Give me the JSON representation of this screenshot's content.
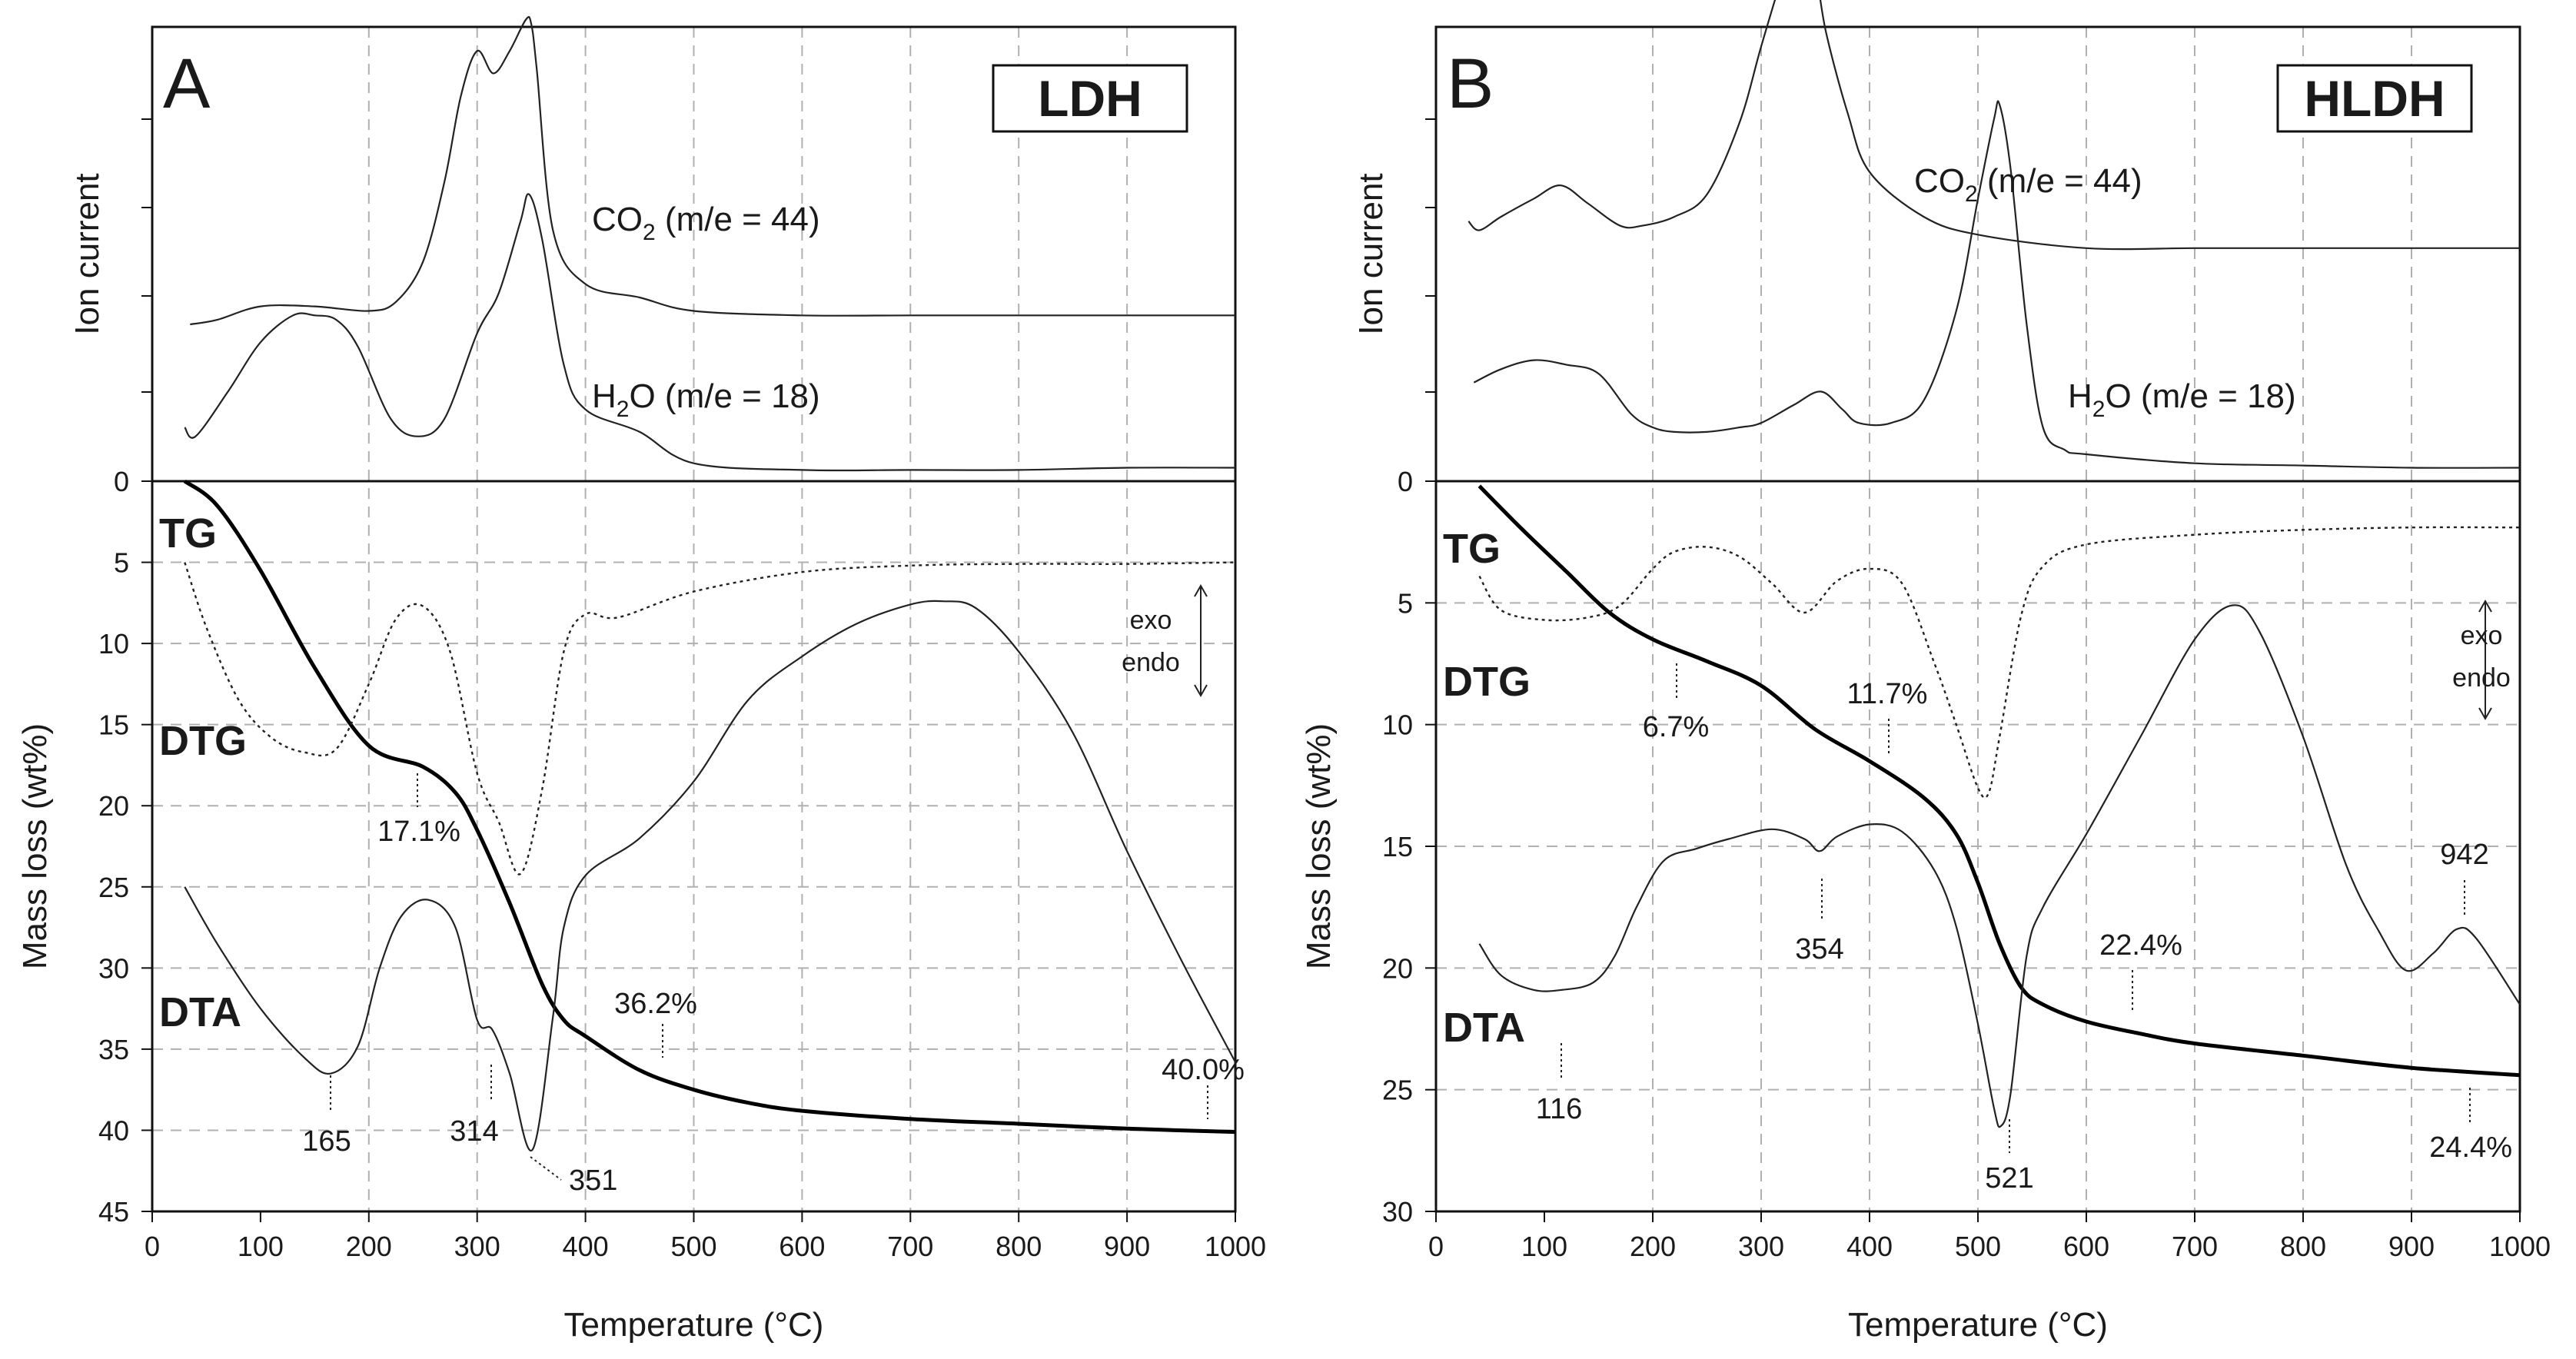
{
  "chart_data": [
    {
      "type": "line",
      "panel_letter": "A",
      "sample_tag": "LDH",
      "xlabel": "Temperature (°C)",
      "ylabel_top": "Ion current",
      "ylabel_bottom": "Mass loss (wt%)",
      "xlim": [
        0,
        1000
      ],
      "x_ticks": [
        "0",
        "100",
        "200",
        "300",
        "400",
        "500",
        "600",
        "700",
        "800",
        "900",
        "1000"
      ],
      "ylim": [
        0,
        45
      ],
      "y_ticks": [
        "0",
        "5",
        "10",
        "15",
        "20",
        "25",
        "30",
        "35",
        "40",
        "45"
      ],
      "ms_labels": [
        {
          "text": "CO",
          "sub": "2",
          "rest": " (m/e = 44)"
        },
        {
          "text": "H",
          "sub": "2",
          "rest": "O (m/e = 18)"
        }
      ],
      "curve_labels": [
        "TG",
        "DTG",
        "DTA"
      ],
      "exo_label": "exo",
      "endo_label": "endo",
      "annotations": [
        "165",
        "314",
        "351",
        "17.1%",
        "36.2%",
        "40.0%"
      ],
      "series": [
        {
          "name": "TG",
          "x": [
            30,
            60,
            100,
            150,
            200,
            250,
            280,
            300,
            330,
            360,
            380,
            400,
            450,
            500,
            550,
            600,
            700,
            800,
            900,
            1000
          ],
          "values": [
            0,
            1.5,
            5.5,
            11.5,
            16.3,
            17.6,
            19.2,
            21.5,
            26,
            31,
            33.2,
            34.2,
            36.3,
            37.5,
            38.3,
            38.8,
            39.3,
            39.6,
            39.9,
            40.1
          ]
        },
        {
          "name": "DTG",
          "x": [
            30,
            50,
            80,
            110,
            140,
            170,
            200,
            225,
            250,
            275,
            300,
            320,
            340,
            360,
            380,
            400,
            430,
            500,
            600,
            700,
            800,
            900,
            1000
          ],
          "values": [
            5,
            9,
            13.5,
            15.8,
            16.7,
            16.5,
            12.5,
            8.5,
            7.7,
            10.5,
            18,
            21,
            24.2,
            19,
            10.5,
            8.2,
            8.4,
            6.8,
            5.6,
            5.2,
            5.1,
            5.1,
            5.0
          ]
        },
        {
          "name": "DTA",
          "x": [
            30,
            60,
            100,
            140,
            165,
            190,
            210,
            230,
            255,
            280,
            300,
            314,
            330,
            351,
            370,
            380,
            400,
            450,
            500,
            550,
            600,
            650,
            700,
            730,
            760,
            800,
            850,
            900,
            950,
            1000
          ],
          "values": [
            25,
            28.5,
            32.5,
            35.5,
            36.5,
            34.8,
            30,
            26.8,
            25.8,
            27.5,
            33.2,
            33.8,
            36.5,
            41.2,
            33,
            27.5,
            24.3,
            22,
            18.5,
            13.5,
            10.8,
            8.8,
            7.6,
            7.4,
            7.8,
            10.5,
            15.5,
            22.8,
            29.5,
            35.8
          ]
        },
        {
          "name": "CO2 (m/e = 44)",
          "x": [
            35,
            60,
            100,
            150,
            200,
            225,
            250,
            270,
            285,
            300,
            315,
            330,
            345,
            350,
            355,
            370,
            400,
            450,
            500,
            600,
            700,
            800,
            900,
            1000
          ],
          "values": [
            0.35,
            0.36,
            0.39,
            0.39,
            0.38,
            0.4,
            0.49,
            0.67,
            0.86,
            0.96,
            0.91,
            0.96,
            1.03,
            1.02,
            0.92,
            0.56,
            0.44,
            0.41,
            0.38,
            0.37,
            0.37,
            0.37,
            0.37,
            0.37
          ]
        },
        {
          "name": "H2O (m/e = 18)",
          "x": [
            30,
            40,
            70,
            100,
            130,
            150,
            170,
            190,
            220,
            245,
            270,
            300,
            320,
            340,
            348,
            360,
            380,
            400,
            450,
            500,
            600,
            700,
            800,
            900,
            1000
          ],
          "values": [
            0.12,
            0.1,
            0.2,
            0.31,
            0.37,
            0.37,
            0.36,
            0.3,
            0.14,
            0.1,
            0.14,
            0.33,
            0.42,
            0.58,
            0.64,
            0.54,
            0.26,
            0.16,
            0.11,
            0.04,
            0.025,
            0.025,
            0.025,
            0.03,
            0.03
          ]
        }
      ],
      "colors": {
        "tg": "#000000",
        "other": "#222222",
        "grid": "#b0b0b0"
      }
    },
    {
      "type": "line",
      "panel_letter": "B",
      "sample_tag": "HLDH",
      "xlabel": "Temperature (°C)",
      "ylabel_top": "Ion current",
      "ylabel_bottom": "Mass loss (wt%)",
      "xlim": [
        0,
        1000
      ],
      "x_ticks": [
        "0",
        "100",
        "200",
        "300",
        "400",
        "500",
        "600",
        "700",
        "800",
        "900",
        "1000"
      ],
      "ylim": [
        0,
        30
      ],
      "y_ticks": [
        "0",
        "5",
        "10",
        "15",
        "20",
        "25",
        "30"
      ],
      "ms_labels": [
        {
          "text": "CO",
          "sub": "2",
          "rest": " (m/e = 44)"
        },
        {
          "text": "H",
          "sub": "2",
          "rest": "O (m/e = 18)"
        }
      ],
      "curve_labels": [
        "TG",
        "DTG",
        "DTA"
      ],
      "exo_label": "exo",
      "endo_label": "endo",
      "annotations": [
        "116",
        "354",
        "521",
        "942",
        "6.7%",
        "11.7%",
        "22.4%",
        "24.4%"
      ],
      "series": [
        {
          "name": "TG",
          "x": [
            40,
            80,
            120,
            160,
            200,
            250,
            300,
            350,
            400,
            450,
            480,
            500,
            520,
            540,
            560,
            600,
            650,
            700,
            800,
            900,
            1000
          ],
          "values": [
            0.2,
            2,
            3.7,
            5.4,
            6.5,
            7.4,
            8.4,
            10.2,
            11.5,
            13,
            14.5,
            16.5,
            19,
            20.8,
            21.5,
            22.2,
            22.7,
            23.1,
            23.6,
            24.1,
            24.4
          ]
        },
        {
          "name": "DTG",
          "x": [
            40,
            60,
            100,
            140,
            170,
            200,
            220,
            250,
            280,
            310,
            340,
            370,
            400,
            430,
            460,
            480,
            500,
            510,
            520,
            540,
            560,
            600,
            700,
            800,
            900,
            1000
          ],
          "values": [
            3.9,
            5.3,
            5.7,
            5.6,
            5.1,
            3.6,
            2.9,
            2.7,
            3.1,
            4.2,
            5.4,
            4.1,
            3.6,
            4.2,
            7.5,
            10,
            12.6,
            12.8,
            10.5,
            5.5,
            3.5,
            2.6,
            2.2,
            2,
            1.9,
            1.9
          ]
        },
        {
          "name": "DTA",
          "x": [
            40,
            60,
            90,
            116,
            145,
            165,
            185,
            210,
            240,
            270,
            310,
            340,
            354,
            370,
            400,
            430,
            460,
            480,
            500,
            515,
            521,
            530,
            545,
            560,
            600,
            650,
            700,
            735,
            760,
            800,
            840,
            870,
            895,
            920,
            942,
            960,
            1000
          ],
          "values": [
            19,
            20.3,
            20.9,
            20.9,
            20.6,
            19.5,
            17.5,
            15.6,
            15.1,
            14.7,
            14.3,
            14.7,
            15.2,
            14.6,
            14.1,
            14.4,
            16,
            18.3,
            22.3,
            25.8,
            26.5,
            25.2,
            19.5,
            17.5,
            14.5,
            10.5,
            6.5,
            5.1,
            6.2,
            10.5,
            15.8,
            18.5,
            20.1,
            19.4,
            18.4,
            18.8,
            21.5
          ]
        },
        {
          "name": "CO2 (m/e = 44)",
          "x": [
            30,
            40,
            60,
            90,
            115,
            140,
            170,
            190,
            220,
            250,
            280,
            300,
            320,
            330,
            340,
            350,
            360,
            380,
            400,
            450,
            500,
            600,
            700,
            800,
            900,
            1000
          ],
          "values": [
            0.58,
            0.56,
            0.59,
            0.63,
            0.66,
            0.62,
            0.57,
            0.57,
            0.59,
            0.64,
            0.8,
            0.97,
            1.13,
            1.19,
            1.19,
            1.14,
            1.0,
            0.82,
            0.69,
            0.59,
            0.55,
            0.52,
            0.52,
            0.52,
            0.52,
            0.52
          ]
        },
        {
          "name": "H2O (m/e = 18)",
          "x": [
            35,
            60,
            90,
            120,
            150,
            180,
            200,
            220,
            250,
            280,
            300,
            330,
            355,
            375,
            390,
            420,
            450,
            480,
            500,
            515,
            520,
            530,
            545,
            560,
            580,
            600,
            700,
            800,
            900,
            1000
          ],
          "values": [
            0.22,
            0.25,
            0.27,
            0.26,
            0.24,
            0.15,
            0.12,
            0.11,
            0.11,
            0.12,
            0.13,
            0.17,
            0.2,
            0.16,
            0.13,
            0.13,
            0.18,
            0.38,
            0.63,
            0.81,
            0.84,
            0.7,
            0.35,
            0.12,
            0.07,
            0.06,
            0.04,
            0.035,
            0.03,
            0.03
          ]
        }
      ],
      "colors": {
        "tg": "#000000",
        "other": "#222222",
        "grid": "#b0b0b0"
      }
    }
  ]
}
